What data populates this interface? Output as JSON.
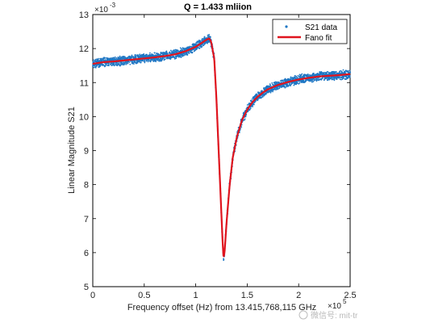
{
  "chart_data": {
    "type": "scatter",
    "title": "Q = 1.433 mliion",
    "xlabel": "Frequency offset (Hz) from 13.415,768,115 GHz",
    "ylabel": "Linear Magnitude S21",
    "x_multiplier": "×10",
    "x_exponent": "5",
    "y_multiplier": "×10",
    "y_exponent": "-3",
    "xlim": [
      0,
      2.5
    ],
    "ylim": [
      5,
      13
    ],
    "x_ticks": [
      "0",
      "0.5",
      "1",
      "1.5",
      "2",
      "2.5"
    ],
    "y_ticks": [
      "5",
      "6",
      "7",
      "8",
      "9",
      "10",
      "11",
      "12",
      "13"
    ],
    "grid": false,
    "legend_position": "top-right",
    "series": [
      {
        "name": "S21 data",
        "style": "points",
        "color": "#1f77c4",
        "x": [
          0.0,
          0.1,
          0.2,
          0.3,
          0.4,
          0.5,
          0.6,
          0.7,
          0.8,
          0.9,
          1.0,
          1.05,
          1.1,
          1.13,
          1.15,
          1.18,
          1.2,
          1.22,
          1.24,
          1.26,
          1.27,
          1.28,
          1.3,
          1.33,
          1.36,
          1.4,
          1.45,
          1.5,
          1.55,
          1.6,
          1.65,
          1.7,
          1.8,
          1.9,
          2.0,
          2.1,
          2.2,
          2.3,
          2.4,
          2.5
        ],
        "y": [
          11.55,
          11.6,
          11.62,
          11.65,
          11.68,
          11.71,
          11.74,
          11.78,
          11.83,
          11.92,
          12.05,
          12.15,
          12.25,
          12.3,
          12.2,
          11.7,
          10.6,
          9.2,
          7.8,
          6.4,
          5.85,
          6.0,
          6.9,
          8.0,
          8.8,
          9.4,
          9.9,
          10.2,
          10.42,
          10.58,
          10.7,
          10.8,
          10.93,
          11.02,
          11.09,
          11.14,
          11.18,
          11.2,
          11.22,
          11.25
        ]
      },
      {
        "name": "Fano fit",
        "style": "line",
        "color": "#e0141e",
        "x": [
          0.0,
          0.1,
          0.2,
          0.3,
          0.4,
          0.5,
          0.6,
          0.7,
          0.8,
          0.9,
          1.0,
          1.05,
          1.1,
          1.13,
          1.15,
          1.18,
          1.2,
          1.22,
          1.24,
          1.26,
          1.27,
          1.28,
          1.3,
          1.33,
          1.36,
          1.4,
          1.45,
          1.5,
          1.55,
          1.6,
          1.65,
          1.7,
          1.8,
          1.9,
          2.0,
          2.1,
          2.2,
          2.3,
          2.4,
          2.5
        ],
        "y": [
          11.55,
          11.6,
          11.62,
          11.65,
          11.68,
          11.71,
          11.74,
          11.78,
          11.83,
          11.92,
          12.05,
          12.15,
          12.25,
          12.3,
          12.2,
          11.7,
          10.6,
          9.2,
          7.8,
          6.4,
          5.85,
          6.0,
          6.9,
          8.0,
          8.8,
          9.4,
          9.9,
          10.2,
          10.42,
          10.58,
          10.7,
          10.8,
          10.93,
          11.02,
          11.09,
          11.14,
          11.18,
          11.2,
          11.22,
          11.25
        ]
      }
    ]
  },
  "watermark": {
    "text": "微信号: mit-tr"
  }
}
